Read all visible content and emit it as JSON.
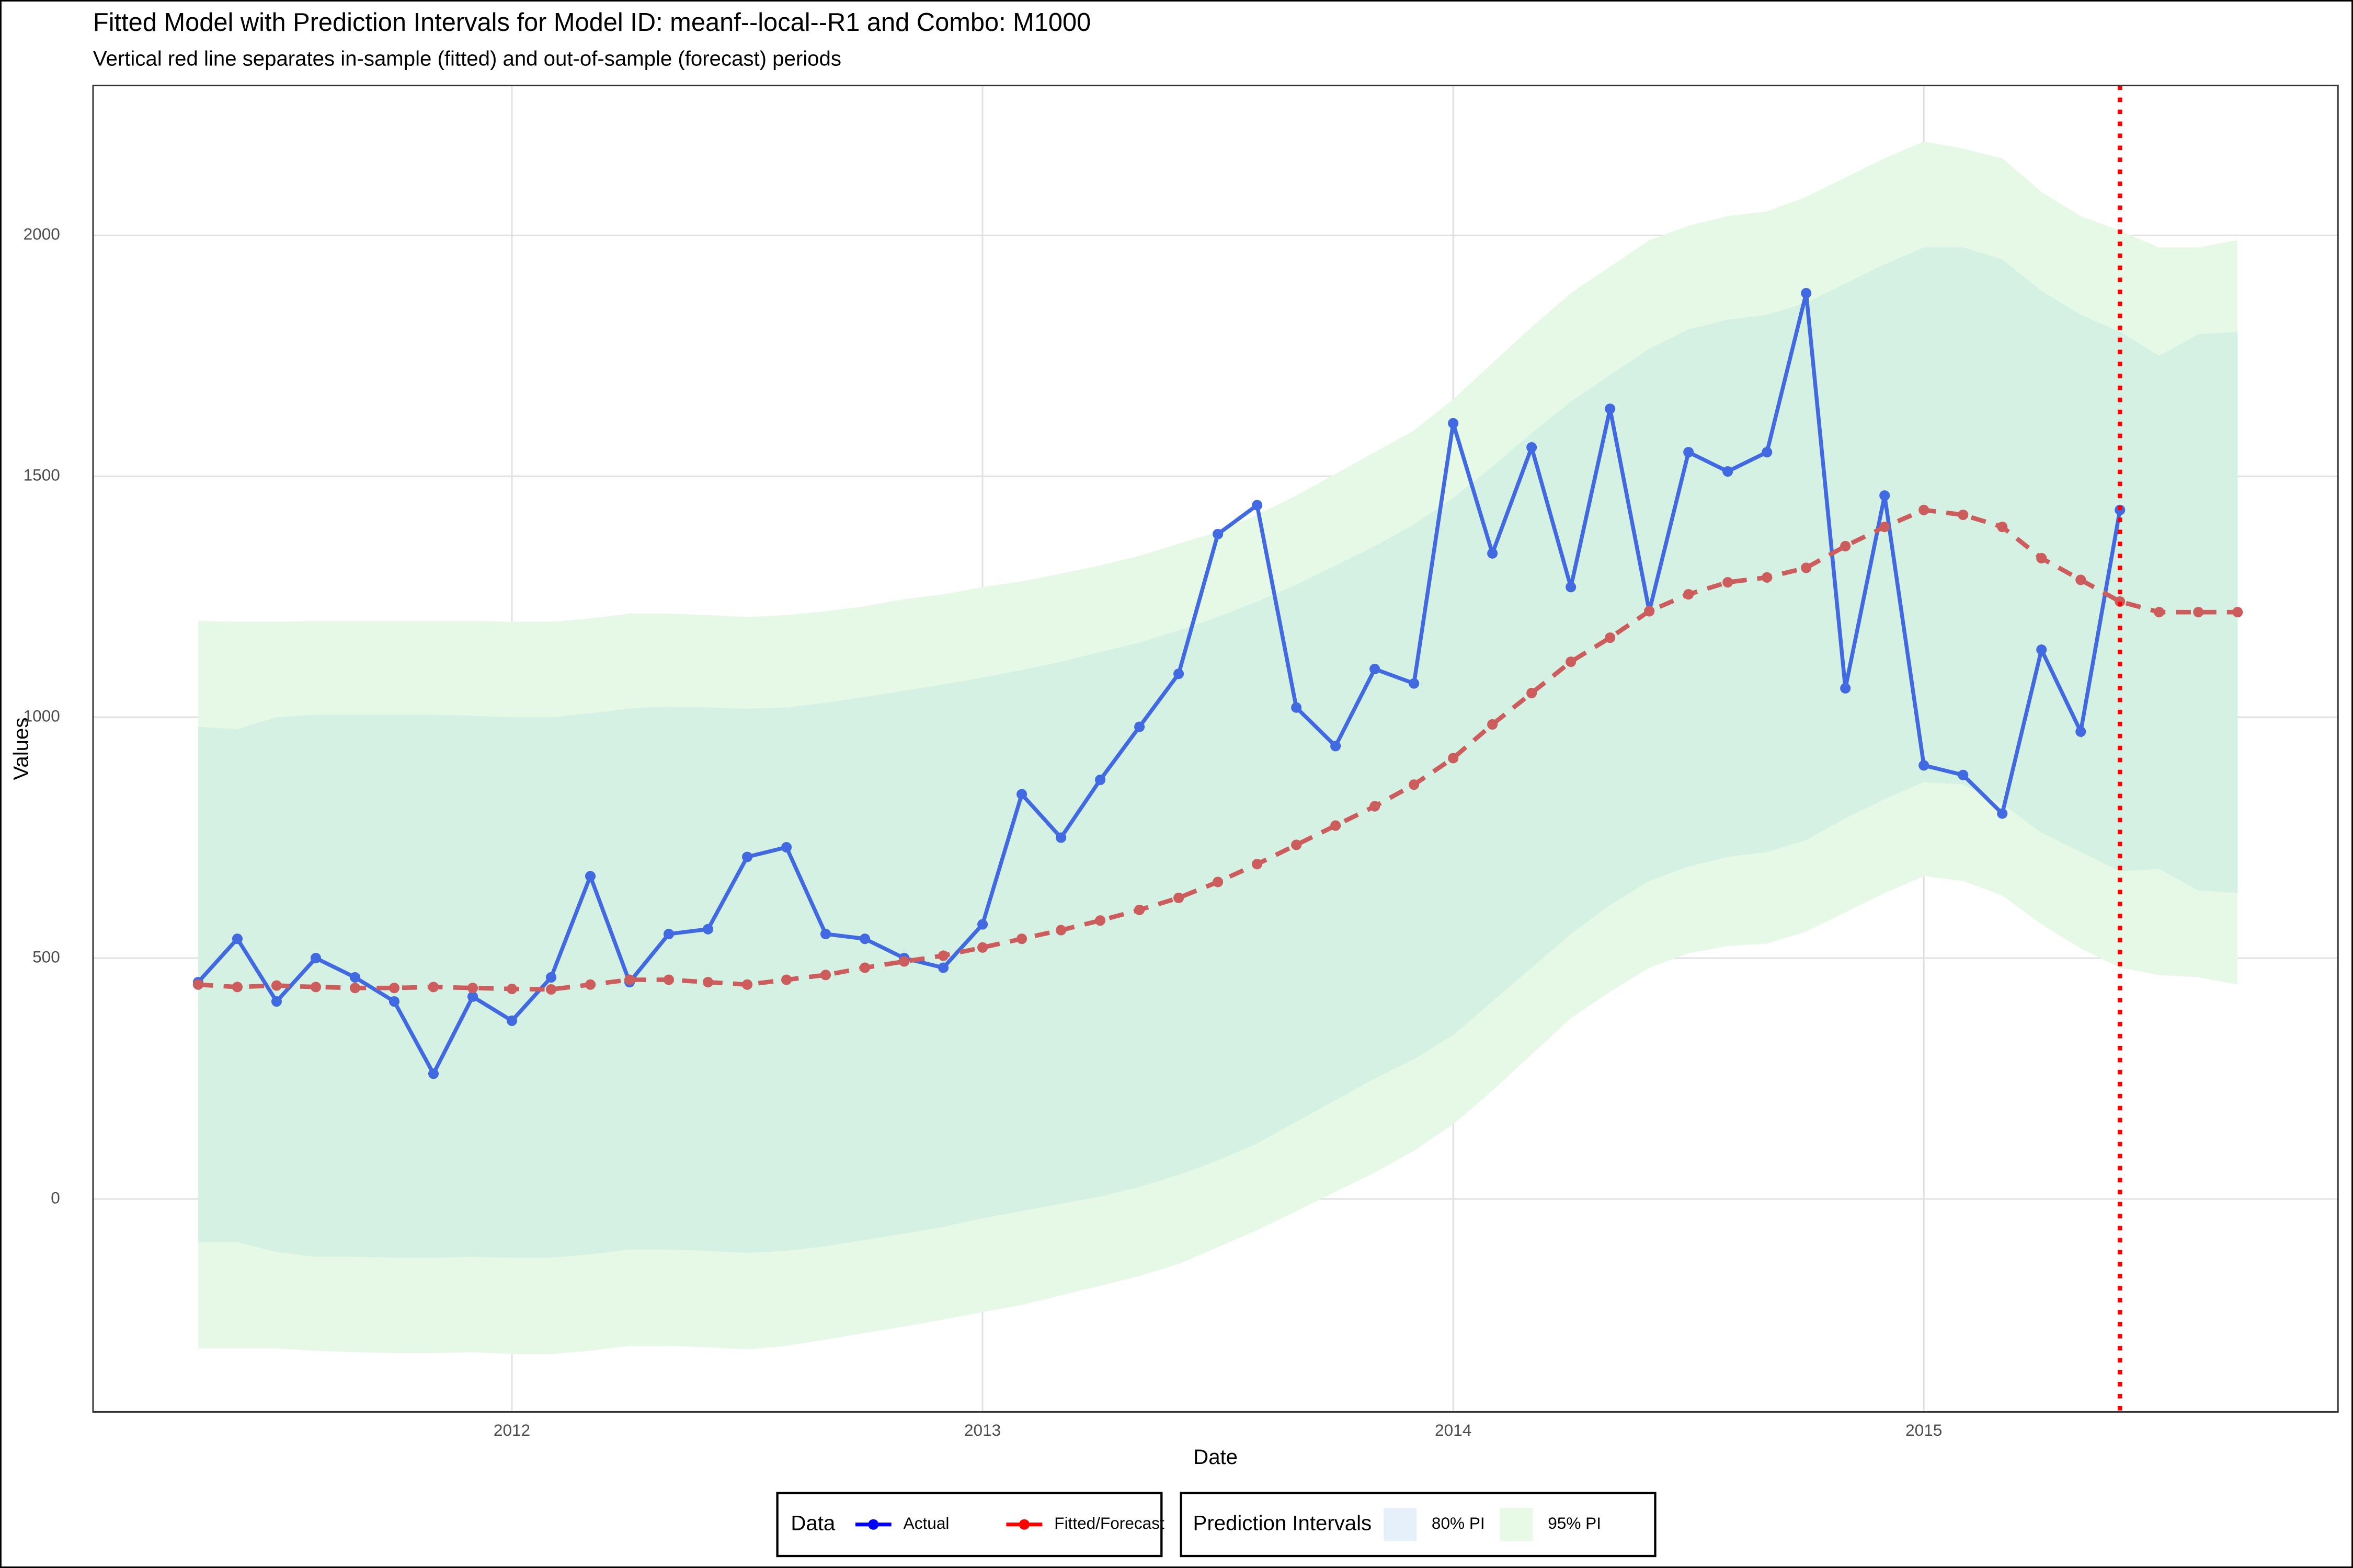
{
  "chart_data": {
    "type": "line",
    "title": "Fitted Model with Prediction Intervals for Model ID: meanf--local--R1 and Combo: M1000",
    "subtitle": "Vertical red line separates in-sample (fitted) and out-of-sample (forecast) periods",
    "x_label": "Date",
    "y_label": "Values",
    "x": [
      "2011-05",
      "2011-06",
      "2011-07",
      "2011-08",
      "2011-09",
      "2011-10",
      "2011-11",
      "2011-12",
      "2012-01",
      "2012-02",
      "2012-03",
      "2012-04",
      "2012-05",
      "2012-06",
      "2012-07",
      "2012-08",
      "2012-09",
      "2012-10",
      "2012-11",
      "2012-12",
      "2013-01",
      "2013-02",
      "2013-03",
      "2013-04",
      "2013-05",
      "2013-06",
      "2013-07",
      "2013-08",
      "2013-09",
      "2013-10",
      "2013-11",
      "2013-12",
      "2014-01",
      "2014-02",
      "2014-03",
      "2014-04",
      "2014-05",
      "2014-06",
      "2014-07",
      "2014-08",
      "2014-09",
      "2014-10",
      "2014-11",
      "2014-12",
      "2015-01",
      "2015-02",
      "2015-03",
      "2015-04",
      "2015-05",
      "2015-06",
      "2015-07",
      "2015-08",
      "2015-09"
    ],
    "series": [
      {
        "name": "Actual",
        "color": "#4169e1",
        "legend_color": "#0000ff",
        "dash": false,
        "values": [
          450,
          540,
          410,
          500,
          460,
          410,
          260,
          420,
          370,
          460,
          670,
          450,
          550,
          560,
          710,
          730,
          550,
          540,
          500,
          480,
          570,
          840,
          750,
          870,
          980,
          1090,
          1380,
          1440,
          1020,
          940,
          1100,
          1070,
          1610,
          1340,
          1560,
          1270,
          1640,
          1220,
          1550,
          1510,
          1550,
          1880,
          1060,
          1460,
          900,
          880,
          800,
          1140,
          970,
          1430,
          null,
          null,
          null
        ]
      },
      {
        "name": "Fitted/Forecast",
        "color": "#cd5c5c",
        "legend_color": "#ff0000",
        "dash": true,
        "values": [
          445,
          440,
          443,
          440,
          438,
          438,
          440,
          438,
          436,
          435,
          445,
          455,
          455,
          450,
          445,
          455,
          465,
          480,
          493,
          505,
          522,
          540,
          558,
          578,
          600,
          625,
          658,
          695,
          735,
          775,
          815,
          860,
          915,
          985,
          1050,
          1115,
          1165,
          1220,
          1255,
          1280,
          1290,
          1310,
          1355,
          1395,
          1430,
          1420,
          1395,
          1330,
          1285,
          1240,
          1218,
          1218,
          1218
        ]
      }
    ],
    "bands": [
      {
        "name": "95% PI",
        "color": "#e6f9e6",
        "lower": [
          -310,
          -310,
          -310,
          -315,
          -318,
          -320,
          -320,
          -318,
          -322,
          -322,
          -315,
          -305,
          -305,
          -308,
          -312,
          -305,
          -292,
          -278,
          -265,
          -250,
          -235,
          -220,
          -200,
          -180,
          -160,
          -135,
          -100,
          -65,
          -25,
          15,
          55,
          100,
          155,
          225,
          300,
          375,
          430,
          480,
          510,
          525,
          530,
          555,
          595,
          635,
          670,
          660,
          630,
          570,
          520,
          480,
          465,
          460,
          445
        ],
        "upper": [
          1200,
          1198,
          1198,
          1200,
          1200,
          1200,
          1200,
          1200,
          1198,
          1198,
          1205,
          1215,
          1215,
          1212,
          1208,
          1212,
          1220,
          1230,
          1245,
          1255,
          1270,
          1282,
          1298,
          1315,
          1335,
          1360,
          1385,
          1420,
          1460,
          1505,
          1550,
          1595,
          1660,
          1735,
          1810,
          1880,
          1935,
          1990,
          2020,
          2040,
          2050,
          2080,
          2120,
          2160,
          2195,
          2180,
          2160,
          2090,
          2040,
          2010,
          1975,
          1975,
          1990
        ]
      },
      {
        "name": "80% PI",
        "color": "#d5f1e3",
        "lower": [
          -90,
          -90,
          -110,
          -120,
          -120,
          -122,
          -122,
          -120,
          -122,
          -122,
          -115,
          -105,
          -105,
          -108,
          -112,
          -108,
          -98,
          -85,
          -72,
          -58,
          -40,
          -25,
          -10,
          5,
          25,
          50,
          80,
          115,
          160,
          205,
          250,
          290,
          340,
          410,
          480,
          550,
          610,
          660,
          690,
          710,
          720,
          745,
          790,
          830,
          865,
          860,
          820,
          760,
          720,
          680,
          685,
          640,
          635
        ],
        "upper": [
          980,
          975,
          1000,
          1005,
          1005,
          1005,
          1005,
          1003,
          1000,
          1000,
          1008,
          1018,
          1022,
          1020,
          1018,
          1020,
          1030,
          1042,
          1055,
          1068,
          1082,
          1098,
          1115,
          1135,
          1155,
          1180,
          1208,
          1240,
          1275,
          1315,
          1355,
          1400,
          1455,
          1520,
          1590,
          1655,
          1710,
          1765,
          1805,
          1825,
          1835,
          1860,
          1900,
          1940,
          1975,
          1975,
          1950,
          1885,
          1835,
          1800,
          1750,
          1795,
          1800
        ]
      }
    ],
    "band_legend_colors": [
      "#e6f0fa",
      "#e6fae6"
    ],
    "forecast_start": "2015-06",
    "forecast_line_color": "#ff0000",
    "xlim": [
      2011.11,
      2015.88
    ],
    "xticks": [
      2012,
      2013,
      2014,
      2015
    ],
    "ylim": [
      -442,
      2311
    ],
    "yticks": [
      0,
      500,
      1000,
      1500,
      2000
    ],
    "grid": true,
    "legend_titles": [
      "Data",
      "Prediction Intervals"
    ],
    "legend_position": "bottom"
  }
}
